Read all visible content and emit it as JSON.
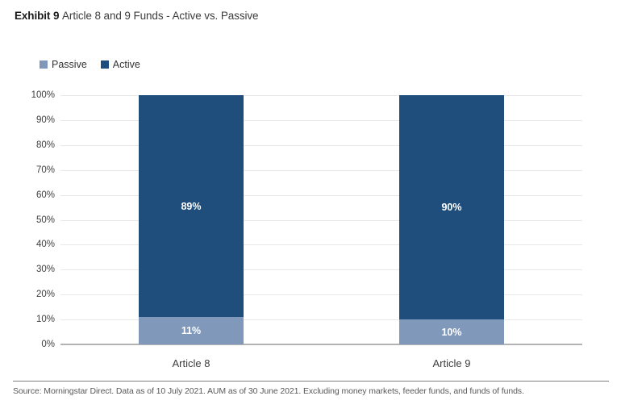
{
  "header": {
    "exhibit_label": "Exhibit 9",
    "title": "Article 8 and 9 Funds - Active vs. Passive"
  },
  "legend": {
    "items": [
      {
        "label": "Passive",
        "color": "#8098ba"
      },
      {
        "label": "Active",
        "color": "#1f4e7c"
      }
    ]
  },
  "chart_data": {
    "type": "bar",
    "stacked": true,
    "title": "Article 8 and 9 Funds - Active vs. Passive",
    "categories": [
      "Article 8",
      "Article 9"
    ],
    "series": [
      {
        "name": "Passive",
        "color": "#8098ba",
        "values": [
          11,
          10
        ],
        "labels": [
          "11%",
          "10%"
        ]
      },
      {
        "name": "Active",
        "color": "#1f4e7c",
        "values": [
          89,
          90
        ],
        "labels": [
          "89%",
          "90%"
        ]
      }
    ],
    "xlabel": "",
    "ylabel": "",
    "ylim": [
      0,
      100
    ],
    "y_ticks": [
      "100%",
      "90%",
      "80%",
      "70%",
      "60%",
      "50%",
      "40%",
      "30%",
      "20%",
      "10%",
      "0%"
    ],
    "grid": true,
    "legend_position": "top-left",
    "colors": {
      "gridline": "#e8e8e8",
      "baseline": "#b3b3b3",
      "bar_label_text": "#ffffff"
    }
  },
  "footer": {
    "source": "Source: Morningstar Direct. Data as of 10 July 2021. AUM as of 30 June 2021. Excluding money markets, feeder funds, and funds of funds."
  }
}
